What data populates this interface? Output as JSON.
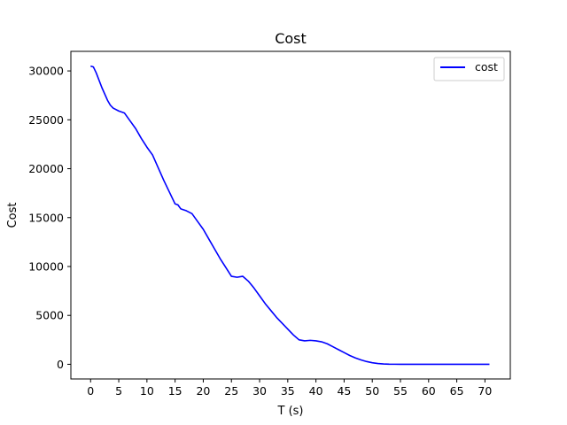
{
  "chart_data": {
    "type": "line",
    "title": "Cost",
    "xlabel": "T (s)",
    "ylabel": "Cost",
    "xlim": [
      -3.5,
      74.5
    ],
    "ylim": [
      -1500,
      32000
    ],
    "xticks": [
      0,
      5,
      10,
      15,
      20,
      25,
      30,
      35,
      40,
      45,
      50,
      55,
      60,
      65,
      70
    ],
    "yticks": [
      0,
      5000,
      10000,
      15000,
      20000,
      25000,
      30000
    ],
    "grid": false,
    "legend_position": "top-right",
    "series": [
      {
        "name": "cost",
        "color": "#0000ff",
        "x": [
          0,
          0.5,
          1,
          2,
          3,
          3.5,
          4,
          5,
          6,
          7,
          8,
          9,
          10,
          11,
          12,
          13,
          14,
          15,
          15.5,
          16,
          17,
          18,
          19,
          20,
          21,
          22,
          23,
          24,
          25,
          26,
          27,
          28,
          29,
          30,
          31,
          32,
          33,
          34,
          35,
          36,
          37,
          38,
          39,
          40,
          41,
          42,
          43,
          44,
          45,
          46,
          47,
          48,
          49,
          50,
          51,
          52,
          53,
          54,
          55,
          56,
          58,
          60,
          62,
          64,
          66,
          68,
          70,
          70.8
        ],
        "y": [
          30500,
          30400,
          29800,
          28300,
          27000,
          26500,
          26200,
          25900,
          25700,
          24900,
          24100,
          23100,
          22200,
          21400,
          20100,
          18800,
          17600,
          16400,
          16300,
          15900,
          15700,
          15400,
          14600,
          13800,
          12800,
          11800,
          10800,
          9900,
          9000,
          8900,
          9000,
          8500,
          7800,
          7000,
          6200,
          5500,
          4800,
          4200,
          3600,
          3000,
          2500,
          2400,
          2450,
          2400,
          2300,
          2100,
          1800,
          1500,
          1200,
          900,
          650,
          450,
          280,
          160,
          80,
          30,
          10,
          5,
          0,
          0,
          0,
          0,
          0,
          0,
          0,
          0,
          0,
          0
        ]
      }
    ]
  }
}
